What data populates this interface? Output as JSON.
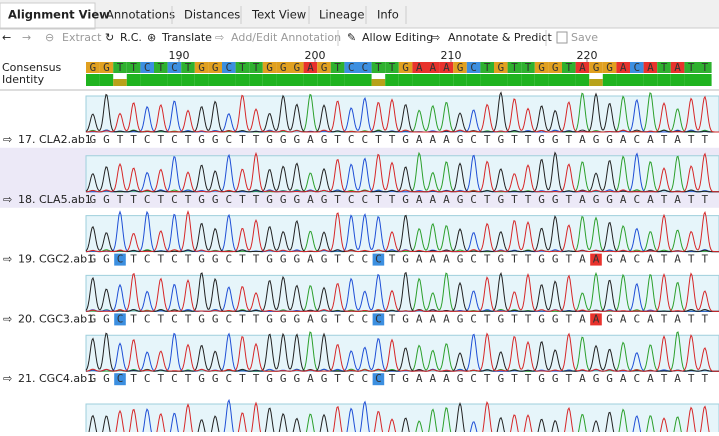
{
  "tabs": [
    "Alignment View",
    "Annotations",
    "Distances",
    "Text View",
    "Lineage",
    "Info"
  ],
  "toolbar": [
    "Extract",
    "R.C.",
    "Translate",
    "Add/Edit Annotation",
    "Allow Editing",
    "Annotate & Predict",
    "Save"
  ],
  "ruler": [
    190,
    200,
    210,
    220
  ],
  "consensus": {
    "label": "Consensus",
    "identity_label": "Identity",
    "sequence": "GGTTCTCTGGCTTGGGAGTCCTTGAAAGCTGTTGGTAGGACATATT"
  },
  "rows": [
    {
      "label": "17. CLA2.ab1",
      "sequence": "GGTTCTCTGGCTTGGGAGTCCTTGAAAGCTGTTGGTAGGACATATT"
    },
    {
      "label": "18. CLA5.ab1",
      "sequence": "GGTTCTCTGGCTTGGGAGTCCTTGAAAGCTGTTGGTAGGACATATT"
    },
    {
      "label": "19. CGC2.ab1",
      "sequence": "GGCTCTCTGGCTTGGGAGTCCCTGAAAGCTGTTGGTAAGACATATT"
    },
    {
      "label": "20. CGC3.ab1",
      "sequence": "GGCTCTCTGGCTTGGGAGTCCCTGAAAGCTGTTGGTAAGACATATT"
    },
    {
      "label": "21. CGC4.ab1",
      "sequence": "GGCTCTCTGGCTTGGGAGTCCCTGAAAGCTGTTGGTAGGACATATT"
    }
  ]
}
